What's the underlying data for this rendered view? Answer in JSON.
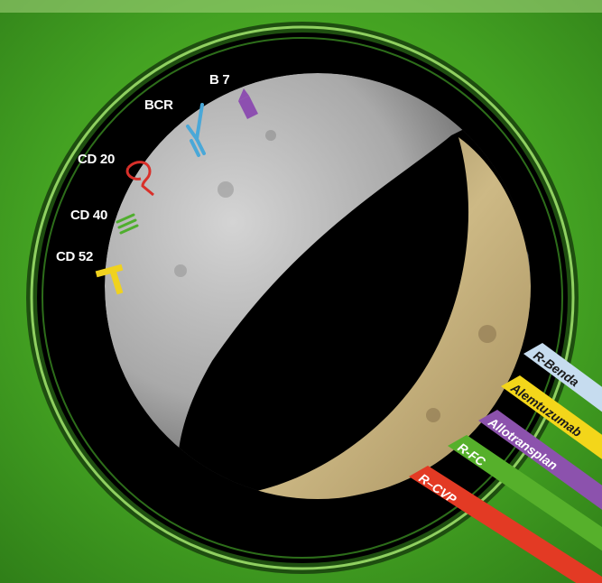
{
  "colors": {
    "background": "#3f9a22",
    "disc": "#000000",
    "moon_grey": "#b8b8b8",
    "moon_gold": "#c9b27e",
    "bcr": "#4aa8d8",
    "b7": "#8d4fb0",
    "cd20": "#d9302a",
    "cd40": "#4fae2e",
    "cd52": "#f0d21e",
    "r_benda": "#c6dcef",
    "alemtuzumab": "#f3d61a",
    "allotransplan": "#8c52ad",
    "r_fc": "#56b02b",
    "r_cvp": "#e33a24"
  },
  "markers": {
    "b7": "B 7",
    "bcr": "BCR",
    "cd20": "CD 20",
    "cd40": "CD 40",
    "cd52": "CD 52"
  },
  "arrows": {
    "r_benda": "R-Benda",
    "alemtuzumab": "Alemtuzumab",
    "allotransplan": "Allotransplan",
    "r_fc": "R-FC",
    "r_cvp": "R–CVP"
  }
}
